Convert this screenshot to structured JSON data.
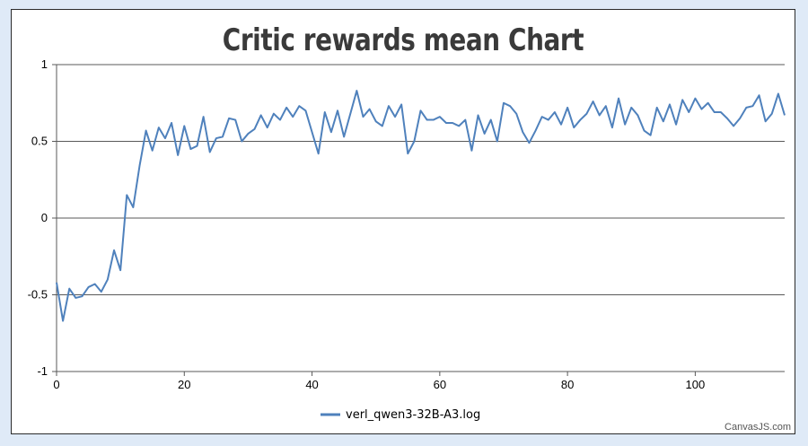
{
  "chart_data": {
    "type": "line",
    "title": "Critic rewards mean Chart",
    "xlabel": "",
    "ylabel": "",
    "xlim": [
      0,
      114
    ],
    "ylim": [
      -1,
      1
    ],
    "x_ticks": [
      0,
      20,
      40,
      60,
      80,
      100
    ],
    "y_ticks": [
      -1,
      -0.5,
      0,
      0.5,
      1
    ],
    "y_tick_labels": [
      "-1",
      "-0.5",
      "0",
      "0.5",
      "1"
    ],
    "grid": "horizontal",
    "legend_position": "bottom-center",
    "series": [
      {
        "name": "verl_qwen3-32B-A3.log",
        "color": "#4f81bc",
        "x": [
          0,
          1,
          2,
          3,
          4,
          5,
          6,
          7,
          8,
          9,
          10,
          11,
          12,
          13,
          14,
          15,
          16,
          17,
          18,
          19,
          20,
          21,
          22,
          23,
          24,
          25,
          26,
          27,
          28,
          29,
          30,
          31,
          32,
          33,
          34,
          35,
          36,
          37,
          38,
          39,
          40,
          41,
          42,
          43,
          44,
          45,
          46,
          47,
          48,
          49,
          50,
          51,
          52,
          53,
          54,
          55,
          56,
          57,
          58,
          59,
          60,
          61,
          62,
          63,
          64,
          65,
          66,
          67,
          68,
          69,
          70,
          71,
          72,
          73,
          74,
          75,
          76,
          77,
          78,
          79,
          80,
          81,
          82,
          83,
          84,
          85,
          86,
          87,
          88,
          89,
          90,
          91,
          92,
          93,
          94,
          95,
          96,
          97,
          98,
          99,
          100,
          101,
          102,
          103,
          104,
          105,
          106,
          107,
          108,
          109,
          110,
          111,
          112,
          113,
          114
        ],
        "values": [
          -0.42,
          -0.67,
          -0.46,
          -0.52,
          -0.51,
          -0.45,
          -0.43,
          -0.48,
          -0.4,
          -0.21,
          -0.34,
          0.15,
          0.07,
          0.34,
          0.57,
          0.44,
          0.59,
          0.52,
          0.62,
          0.41,
          0.6,
          0.45,
          0.47,
          0.66,
          0.43,
          0.52,
          0.53,
          0.65,
          0.64,
          0.5,
          0.55,
          0.58,
          0.67,
          0.59,
          0.68,
          0.64,
          0.72,
          0.66,
          0.73,
          0.7,
          0.56,
          0.42,
          0.69,
          0.56,
          0.7,
          0.53,
          0.68,
          0.83,
          0.66,
          0.71,
          0.63,
          0.6,
          0.73,
          0.66,
          0.74,
          0.42,
          0.5,
          0.7,
          0.64,
          0.64,
          0.66,
          0.62,
          0.62,
          0.6,
          0.64,
          0.44,
          0.67,
          0.55,
          0.64,
          0.5,
          0.75,
          0.73,
          0.68,
          0.56,
          0.49,
          0.57,
          0.66,
          0.64,
          0.69,
          0.61,
          0.72,
          0.59,
          0.64,
          0.68,
          0.76,
          0.67,
          0.73,
          0.59,
          0.78,
          0.61,
          0.72,
          0.67,
          0.57,
          0.54,
          0.72,
          0.63,
          0.74,
          0.61,
          0.77,
          0.69,
          0.78,
          0.71,
          0.75,
          0.69,
          0.69,
          0.65,
          0.6,
          0.65,
          0.72,
          0.73,
          0.8,
          0.63,
          0.68,
          0.81,
          0.67
        ]
      }
    ]
  },
  "credit": "CanvasJS.com"
}
